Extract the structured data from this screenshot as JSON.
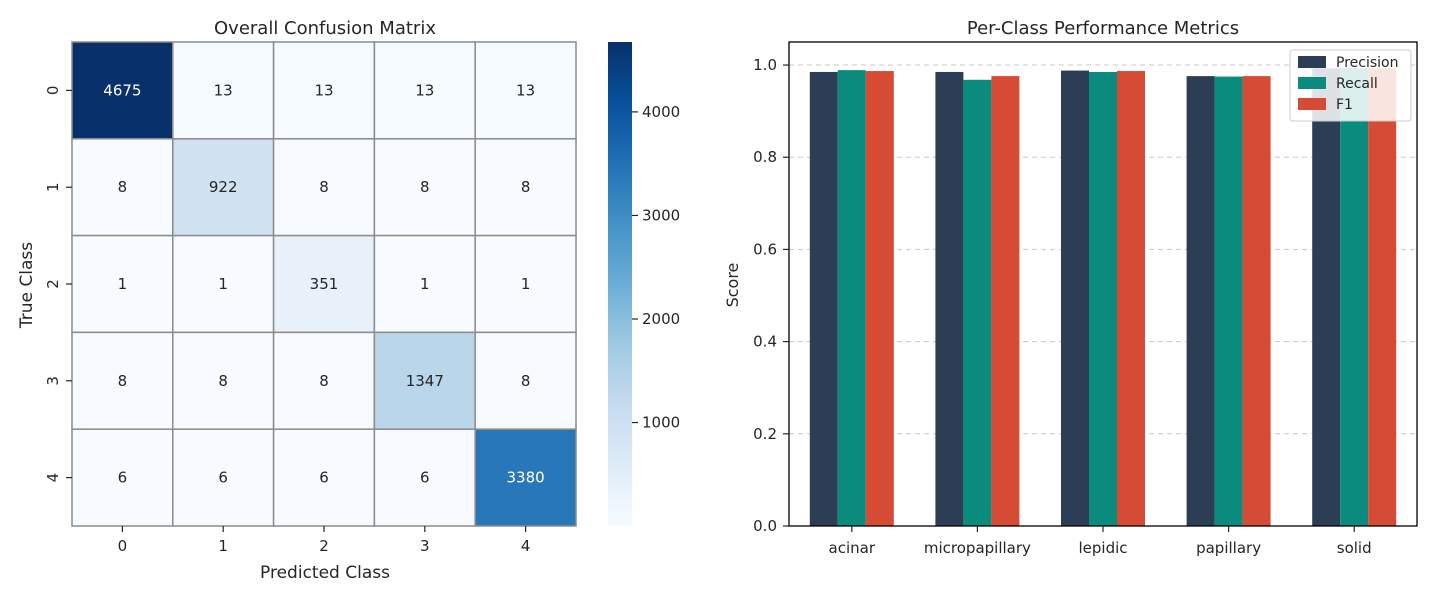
{
  "chart_data": [
    {
      "type": "heatmap",
      "title": "Overall Confusion Matrix",
      "xlabel": "Predicted Class",
      "ylabel": "True Class",
      "x_categories": [
        "0",
        "1",
        "2",
        "3",
        "4"
      ],
      "y_categories": [
        "0",
        "1",
        "2",
        "3",
        "4"
      ],
      "values": [
        [
          4675,
          13,
          13,
          13,
          13
        ],
        [
          8,
          922,
          8,
          8,
          8
        ],
        [
          1,
          1,
          351,
          1,
          1
        ],
        [
          8,
          8,
          8,
          1347,
          8
        ],
        [
          6,
          6,
          6,
          6,
          3380
        ]
      ],
      "colormap": "Blues",
      "colorbar": {
        "min": 1,
        "max": 4675,
        "ticks": [
          1000,
          2000,
          3000,
          4000
        ],
        "tick_labels": [
          "1000",
          "2000",
          "3000",
          "4000"
        ]
      }
    },
    {
      "type": "bar",
      "title": "Per-Class Performance Metrics",
      "xlabel": "",
      "ylabel": "Score",
      "categories": [
        "acinar",
        "micropapillary",
        "lepidic",
        "papillary",
        "solid"
      ],
      "series": [
        {
          "name": "Precision",
          "color": "#2c3e55",
          "values": [
            0.985,
            0.985,
            0.988,
            0.976,
            0.993
          ]
        },
        {
          "name": "Recall",
          "color": "#0b8a7e",
          "values": [
            0.989,
            0.968,
            0.985,
            0.975,
            0.993
          ]
        },
        {
          "name": "F1",
          "color": "#d64b33",
          "values": [
            0.987,
            0.976,
            0.987,
            0.976,
            0.993
          ]
        }
      ],
      "ylim": [
        0,
        1.05
      ],
      "yticks": [
        0.0,
        0.2,
        0.4,
        0.6,
        0.8,
        1.0
      ],
      "ytick_labels": [
        "0.0",
        "0.2",
        "0.4",
        "0.6",
        "0.8",
        "1.0"
      ],
      "grid": "y-dashed",
      "legend": "top-right"
    }
  ]
}
